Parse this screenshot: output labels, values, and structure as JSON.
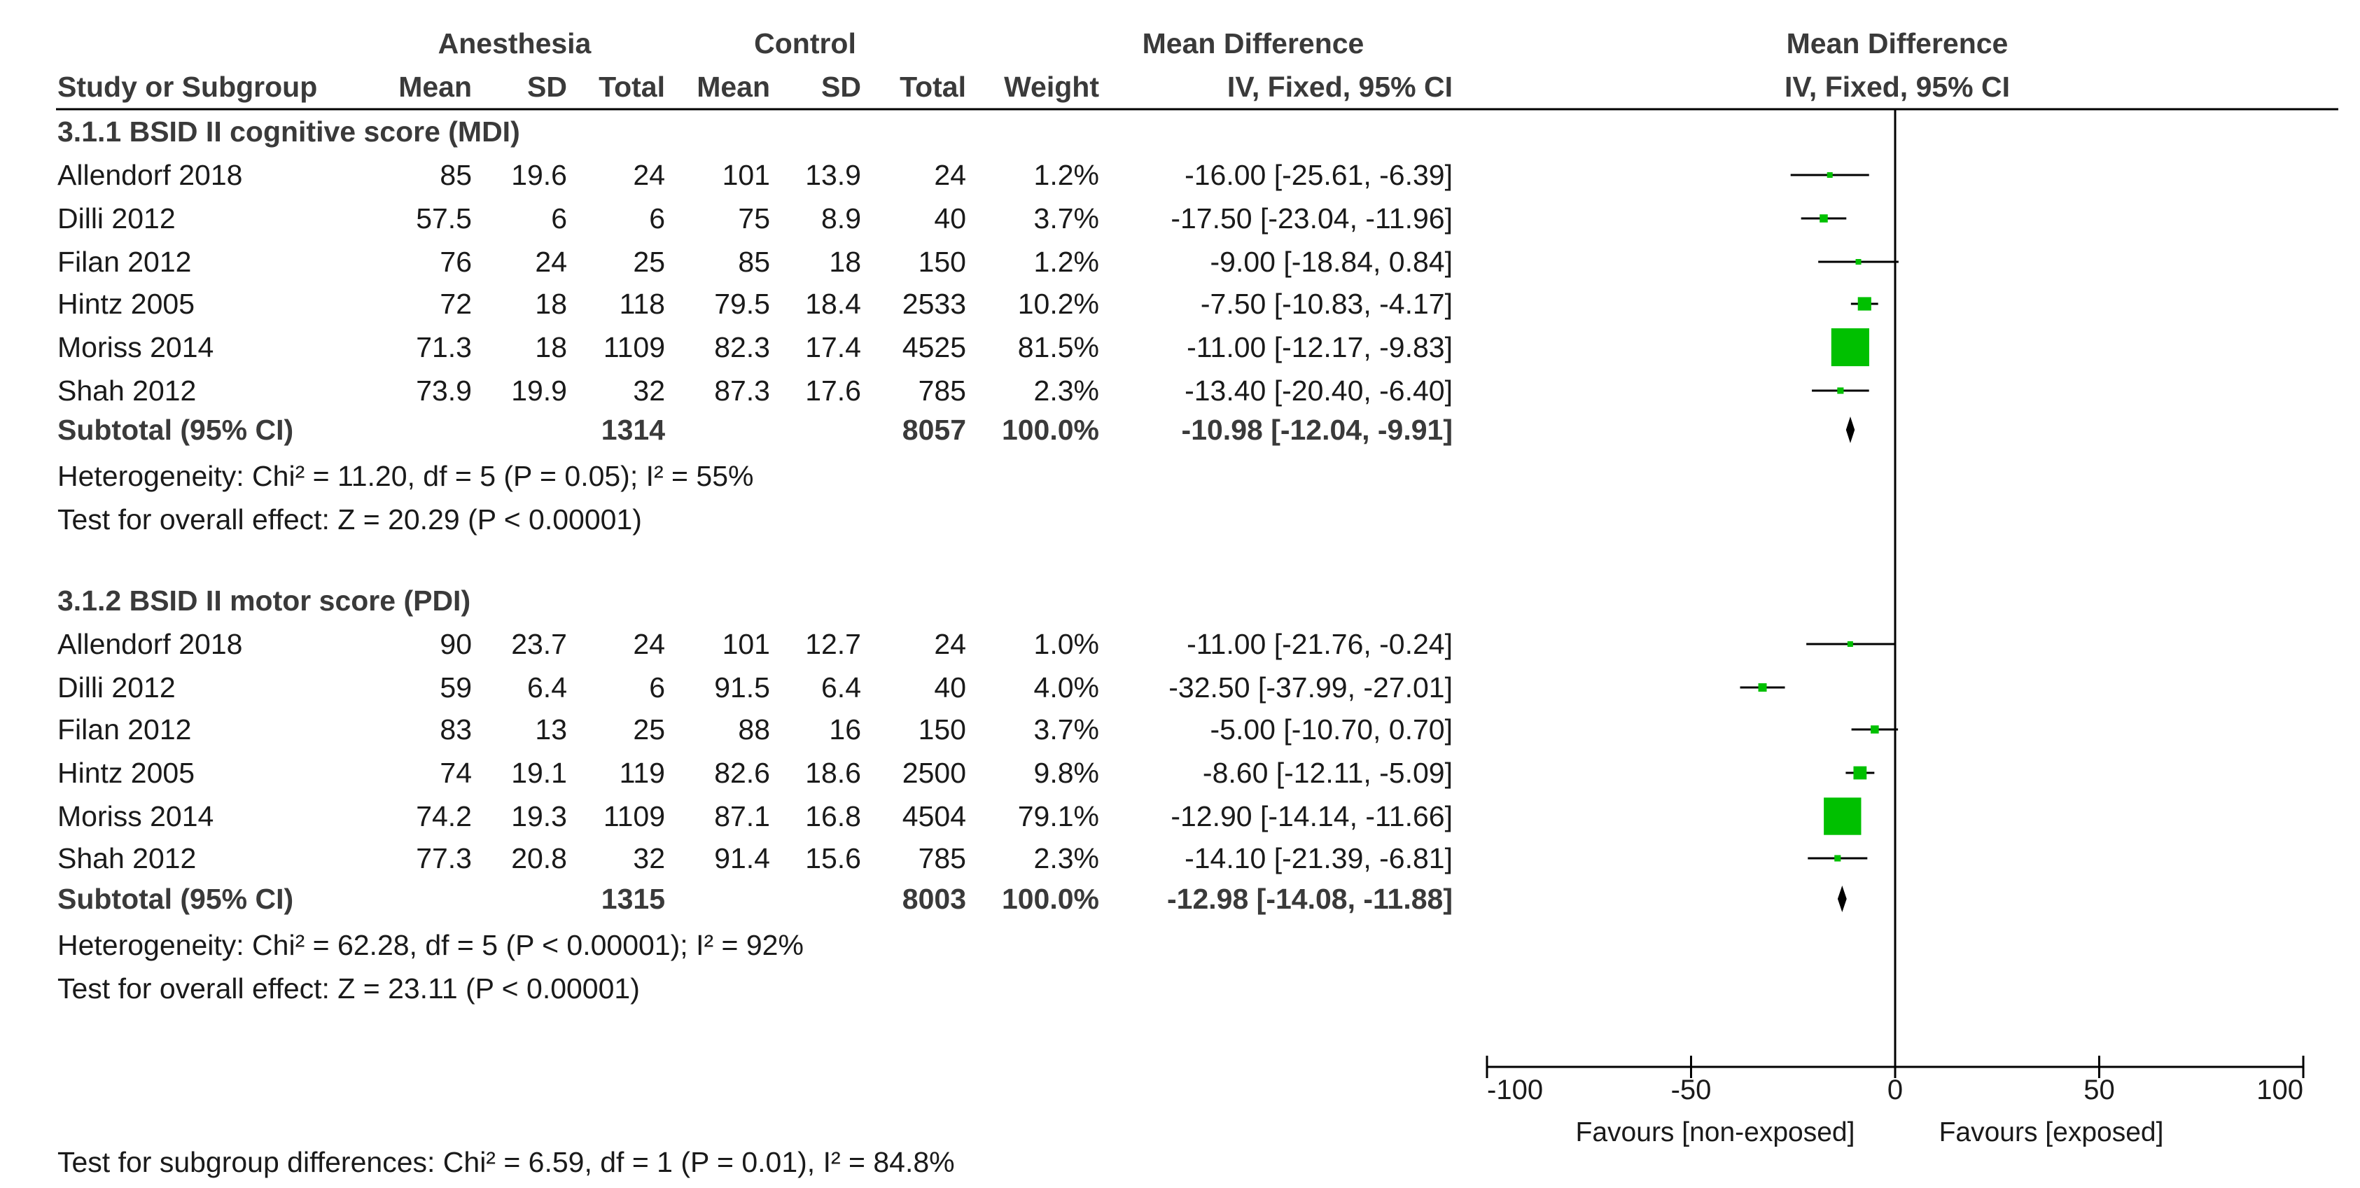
{
  "header": {
    "group1": "Anesthesia",
    "group2": "Control",
    "study_col": "Study or Subgroup",
    "mean": "Mean",
    "sd": "SD",
    "total": "Total",
    "weight": "Weight",
    "effect_title": "Mean Difference",
    "effect_method": "IV, Fixed, 95% CI",
    "plot_title": "Mean Difference",
    "plot_method": "IV, Fixed, 95% CI"
  },
  "subgroups": [
    {
      "title": "3.1.1 BSID II cognitive score (MDI)",
      "studies": [
        {
          "study": "Allendorf 2018",
          "a_mean": "85",
          "a_sd": "19.6",
          "a_total": "24",
          "c_mean": "101",
          "c_sd": "13.9",
          "c_total": "24",
          "weight": "1.2%",
          "ci": "-16.00 [-25.61, -6.39]"
        },
        {
          "study": "Dilli 2012",
          "a_mean": "57.5",
          "a_sd": "6",
          "a_total": "6",
          "c_mean": "75",
          "c_sd": "8.9",
          "c_total": "40",
          "weight": "3.7%",
          "ci": "-17.50 [-23.04, -11.96]"
        },
        {
          "study": "Filan 2012",
          "a_mean": "76",
          "a_sd": "24",
          "a_total": "25",
          "c_mean": "85",
          "c_sd": "18",
          "c_total": "150",
          "weight": "1.2%",
          "ci": "-9.00 [-18.84, 0.84]"
        },
        {
          "study": "Hintz 2005",
          "a_mean": "72",
          "a_sd": "18",
          "a_total": "118",
          "c_mean": "79.5",
          "c_sd": "18.4",
          "c_total": "2533",
          "weight": "10.2%",
          "ci": "-7.50 [-10.83, -4.17]"
        },
        {
          "study": "Moriss 2014",
          "a_mean": "71.3",
          "a_sd": "18",
          "a_total": "1109",
          "c_mean": "82.3",
          "c_sd": "17.4",
          "c_total": "4525",
          "weight": "81.5%",
          "ci": "-11.00 [-12.17, -9.83]"
        },
        {
          "study": "Shah 2012",
          "a_mean": "73.9",
          "a_sd": "19.9",
          "a_total": "32",
          "c_mean": "87.3",
          "c_sd": "17.6",
          "c_total": "785",
          "weight": "2.3%",
          "ci": "-13.40 [-20.40, -6.40]"
        }
      ],
      "subtotal": {
        "label": "Subtotal (95% CI)",
        "a_total": "1314",
        "c_total": "8057",
        "weight": "100.0%",
        "ci": "-10.98 [-12.04, -9.91]"
      },
      "heterogeneity": "Heterogeneity: Chi² = 11.20, df = 5 (P = 0.05); I² = 55%",
      "overall": "Test for overall effect: Z = 20.29 (P < 0.00001)"
    },
    {
      "title": "3.1.2 BSID II motor score (PDI)",
      "studies": [
        {
          "study": "Allendorf 2018",
          "a_mean": "90",
          "a_sd": "23.7",
          "a_total": "24",
          "c_mean": "101",
          "c_sd": "12.7",
          "c_total": "24",
          "weight": "1.0%",
          "ci": "-11.00 [-21.76, -0.24]"
        },
        {
          "study": "Dilli 2012",
          "a_mean": "59",
          "a_sd": "6.4",
          "a_total": "6",
          "c_mean": "91.5",
          "c_sd": "6.4",
          "c_total": "40",
          "weight": "4.0%",
          "ci": "-32.50 [-37.99, -27.01]"
        },
        {
          "study": "Filan 2012",
          "a_mean": "83",
          "a_sd": "13",
          "a_total": "25",
          "c_mean": "88",
          "c_sd": "16",
          "c_total": "150",
          "weight": "3.7%",
          "ci": "-5.00 [-10.70, 0.70]"
        },
        {
          "study": "Hintz 2005",
          "a_mean": "74",
          "a_sd": "19.1",
          "a_total": "119",
          "c_mean": "82.6",
          "c_sd": "18.6",
          "c_total": "2500",
          "weight": "9.8%",
          "ci": "-8.60 [-12.11, -5.09]"
        },
        {
          "study": "Moriss 2014",
          "a_mean": "74.2",
          "a_sd": "19.3",
          "a_total": "1109",
          "c_mean": "87.1",
          "c_sd": "16.8",
          "c_total": "4504",
          "weight": "79.1%",
          "ci": "-12.90 [-14.14, -11.66]"
        },
        {
          "study": "Shah 2012",
          "a_mean": "77.3",
          "a_sd": "20.8",
          "a_total": "32",
          "c_mean": "91.4",
          "c_sd": "15.6",
          "c_total": "785",
          "weight": "2.3%",
          "ci": "-14.10 [-21.39, -6.81]"
        }
      ],
      "subtotal": {
        "label": "Subtotal (95% CI)",
        "a_total": "1315",
        "c_total": "8003",
        "weight": "100.0%",
        "ci": "-12.98 [-14.08, -11.88]"
      },
      "heterogeneity": "Heterogeneity: Chi² = 62.28, df = 5 (P < 0.00001); I² = 92%",
      "overall": "Test for overall effect: Z = 23.11 (P < 0.00001)"
    }
  ],
  "footer": {
    "subgroup_diff": "Test for subgroup differences: Chi² = 6.59, df = 1 (P = 0.01), I² = 84.8%",
    "favours_left": "Favours [non-exposed]",
    "favours_right": "Favours [exposed]"
  },
  "colors": {
    "square": "#00c000",
    "line": "#000000",
    "text": "#1a1a1a"
  },
  "chart_data": {
    "type": "forest",
    "title": "Mean Difference",
    "subtitle": "IV, Fixed, 95% CI",
    "xlim": [
      -100,
      100
    ],
    "xticks": [
      -100,
      -50,
      0,
      50,
      100
    ],
    "xtick_labels": [
      "-100",
      "-50",
      "0",
      "50",
      "100"
    ],
    "xlabel_left": "Favours [non-exposed]",
    "xlabel_right": "Favours [exposed]",
    "series": [
      {
        "name": "3.1.1 BSID II cognitive score (MDI)",
        "points": [
          {
            "label": "Allendorf 2018",
            "est": -16.0,
            "lo": -25.61,
            "hi": -6.39,
            "weight": 1.2
          },
          {
            "label": "Dilli 2012",
            "est": -17.5,
            "lo": -23.04,
            "hi": -11.96,
            "weight": 3.7
          },
          {
            "label": "Filan 2012",
            "est": -9.0,
            "lo": -18.84,
            "hi": 0.84,
            "weight": 1.2
          },
          {
            "label": "Hintz 2005",
            "est": -7.5,
            "lo": -10.83,
            "hi": -4.17,
            "weight": 10.2
          },
          {
            "label": "Moriss 2014",
            "est": -11.0,
            "lo": -12.17,
            "hi": -9.83,
            "weight": 81.5
          },
          {
            "label": "Shah 2012",
            "est": -13.4,
            "lo": -20.4,
            "hi": -6.4,
            "weight": 2.3
          }
        ],
        "pooled": {
          "est": -10.98,
          "lo": -12.04,
          "hi": -9.91
        }
      },
      {
        "name": "3.1.2 BSID II motor score (PDI)",
        "points": [
          {
            "label": "Allendorf 2018",
            "est": -11.0,
            "lo": -21.76,
            "hi": -0.24,
            "weight": 1.0
          },
          {
            "label": "Dilli 2012",
            "est": -32.5,
            "lo": -37.99,
            "hi": -27.01,
            "weight": 4.0
          },
          {
            "label": "Filan 2012",
            "est": -5.0,
            "lo": -10.7,
            "hi": 0.7,
            "weight": 3.7
          },
          {
            "label": "Hintz 2005",
            "est": -8.6,
            "lo": -12.11,
            "hi": -5.09,
            "weight": 9.8
          },
          {
            "label": "Moriss 2014",
            "est": -12.9,
            "lo": -14.14,
            "hi": -11.66,
            "weight": 79.1
          },
          {
            "label": "Shah 2012",
            "est": -14.1,
            "lo": -21.39,
            "hi": -6.81,
            "weight": 2.3
          }
        ],
        "pooled": {
          "est": -12.98,
          "lo": -14.08,
          "hi": -11.88
        }
      }
    ]
  }
}
